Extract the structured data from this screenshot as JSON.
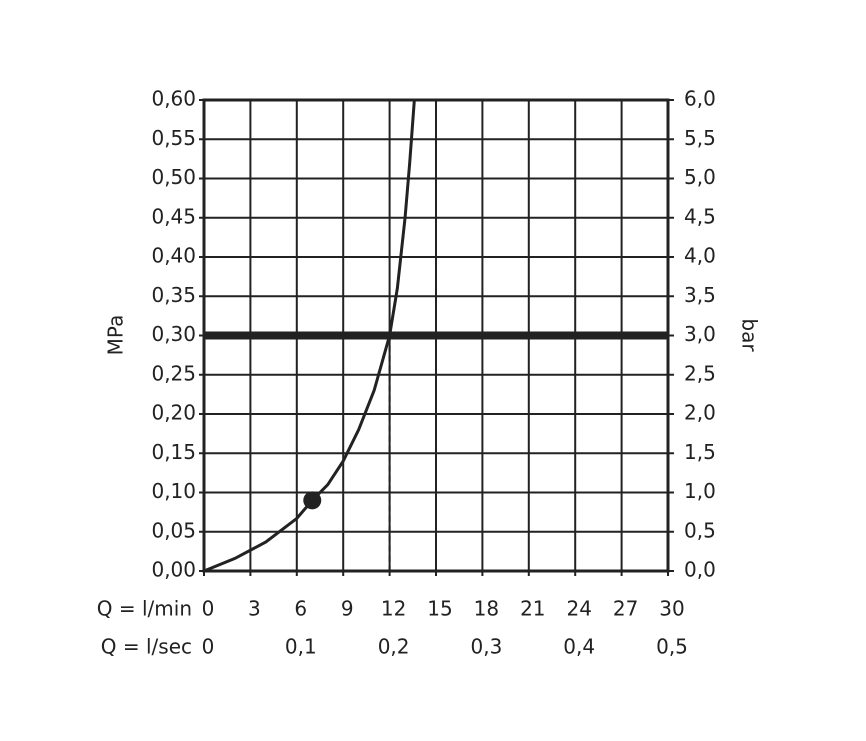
{
  "chart_data": {
    "type": "line",
    "x_label": "Q = l/min",
    "x2_label": "Q = l/sec",
    "y_label": "MPa",
    "y2_label": "bar",
    "x": [
      0,
      2,
      4,
      6,
      7,
      8,
      9,
      10,
      11,
      12,
      12.5,
      13,
      13.3,
      13.6
    ],
    "values": [
      0,
      0.016,
      0.037,
      0.067,
      0.09,
      0.11,
      0.14,
      0.18,
      0.23,
      0.3,
      0.36,
      0.45,
      0.52,
      0.6
    ],
    "color": "#222222",
    "marker": {
      "x": 7,
      "y": 0.09
    },
    "hline": 0.3,
    "vline": 12,
    "xlim": [
      0,
      30
    ],
    "xticks": [
      0,
      3,
      6,
      9,
      12,
      15,
      18,
      21,
      24,
      27,
      30
    ],
    "x2lim": [
      0,
      0.5
    ],
    "x2ticks": [
      0,
      {
        "value": 0.1,
        "label": "0,1"
      },
      {
        "value": 0.2,
        "label": "0,2"
      },
      {
        "value": 0.3,
        "label": "0,3"
      },
      {
        "value": 0.4,
        "label": "0,4"
      },
      {
        "value": 0.5,
        "label": "0,5"
      }
    ],
    "ylim": [
      0,
      0.6
    ],
    "yticks": [
      {
        "value": 0,
        "label": "0,00"
      },
      {
        "value": 0.05,
        "label": "0,05"
      },
      {
        "value": 0.1,
        "label": "0,10"
      },
      {
        "value": 0.15,
        "label": "0,15"
      },
      {
        "value": 0.2,
        "label": "0,20"
      },
      {
        "value": 0.25,
        "label": "0,25"
      },
      {
        "value": 0.3,
        "label": "0,30"
      },
      {
        "value": 0.35,
        "label": "0,35"
      },
      {
        "value": 0.4,
        "label": "0,40"
      },
      {
        "value": 0.45,
        "label": "0,45"
      },
      {
        "value": 0.5,
        "label": "0,50"
      },
      {
        "value": 0.55,
        "label": "0,55"
      },
      {
        "value": 0.6,
        "label": "0,60"
      }
    ],
    "y2lim": [
      0,
      6
    ],
    "y2ticks": [
      {
        "value": 0,
        "label": "0,0"
      },
      {
        "value": 0.5,
        "label": "0,5"
      },
      {
        "value": 1,
        "label": "1,0"
      },
      {
        "value": 1.5,
        "label": "1,5"
      },
      {
        "value": 2,
        "label": "2,0"
      },
      {
        "value": 2.5,
        "label": "2,5"
      },
      {
        "value": 3,
        "label": "3,0"
      },
      {
        "value": 3.5,
        "label": "3,5"
      },
      {
        "value": 4,
        "label": "4,0"
      },
      {
        "value": 4.5,
        "label": "4,5"
      },
      {
        "value": 5,
        "label": "5,0"
      },
      {
        "value": 5.5,
        "label": "5,5"
      },
      {
        "value": 6,
        "label": "6,0"
      }
    ],
    "grid": true
  }
}
